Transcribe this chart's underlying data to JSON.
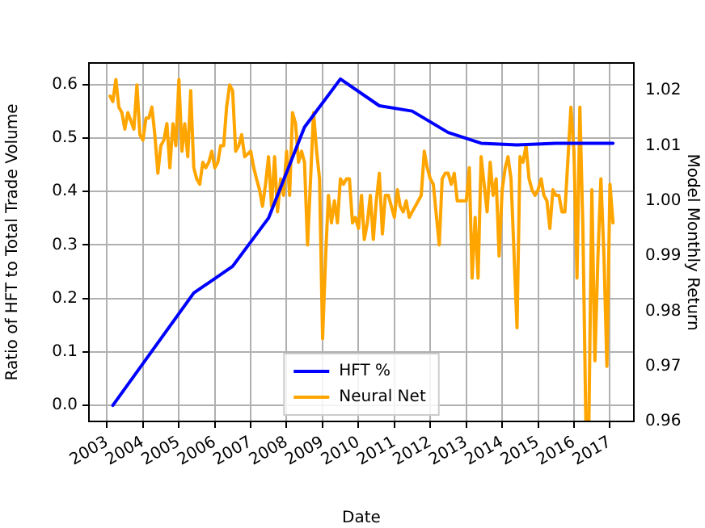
{
  "chart_data": {
    "type": "line",
    "xlabel": "Date",
    "ylabel": "Ratio of HFT to Total Trade Volume",
    "y2label": "Model Monthly Return",
    "xlim": [
      "2002-07",
      "2017-09"
    ],
    "xticks": [
      "2003",
      "2004",
      "2005",
      "2006",
      "2007",
      "2008",
      "2009",
      "2010",
      "2011",
      "2012",
      "2013",
      "2014",
      "2015",
      "2016",
      "2017"
    ],
    "ylim": [
      -0.03,
      0.64
    ],
    "yticks": [
      {
        "value": 0,
        "label": "0.0"
      },
      0.1,
      0.2,
      0.3,
      0.4,
      0.5,
      0.6
    ],
    "y2lim": [
      0.96,
      1.025
    ],
    "y2ticks": [
      0.96,
      0.97,
      0.98,
      0.99,
      {
        "value": 1,
        "label": "1.00"
      },
      1.01,
      1.02
    ],
    "grid": true,
    "legend": "bottom",
    "series": [
      {
        "name": "HFT %",
        "color": "#0000ff",
        "x": [
          "2003-03",
          "2005-06",
          "2006-07",
          "2007-07",
          "2008-07",
          "2009-07",
          "2010-08",
          "2011-07",
          "2012-07",
          "2013-06",
          "2014-06",
          "2015-07",
          "2017-02"
        ],
        "values": [
          0,
          0.21,
          0.26,
          0.35,
          0.52,
          0.61,
          0.56,
          0.55,
          0.51,
          0.49,
          0.487,
          0.49,
          0.49
        ]
      },
      {
        "name": "Neural Net",
        "color": "#ffa500",
        "axis": "y2",
        "x": [
          "2003-02",
          "2003-03",
          "2003-04",
          "2003-05",
          "2003-06",
          "2003-07",
          "2003-08",
          "2003-10",
          "2003-11",
          "2003-12",
          "2004-01",
          "2004-02",
          "2004-03",
          "2004-04",
          "2004-05",
          "2004-06",
          "2004-07",
          "2004-08",
          "2004-09",
          "2004-10",
          "2004-11",
          "2004-12",
          "2005-01",
          "2005-02",
          "2005-03",
          "2005-04",
          "2005-05",
          "2005-06",
          "2005-07",
          "2005-08",
          "2005-09",
          "2005-10",
          "2005-11",
          "2005-12",
          "2006-01",
          "2006-02",
          "2006-03",
          "2006-04",
          "2006-05",
          "2006-06",
          "2006-07",
          "2006-08",
          "2006-09",
          "2006-10",
          "2006-11",
          "2007-01",
          "2007-02",
          "2007-03",
          "2007-04",
          "2007-05",
          "2007-06",
          "2007-07",
          "2007-08",
          "2007-09",
          "2007-10",
          "2007-11",
          "2007-12",
          "2008-01",
          "2008-02",
          "2008-03",
          "2008-04",
          "2008-05",
          "2008-06",
          "2008-07",
          "2008-08",
          "2008-09",
          "2008-10",
          "2008-11",
          "2008-12",
          "2009-01",
          "2009-02",
          "2009-03",
          "2009-04",
          "2009-05",
          "2009-06",
          "2009-07",
          "2009-08",
          "2009-09",
          "2009-10",
          "2009-11",
          "2009-12",
          "2010-01",
          "2010-02",
          "2010-03",
          "2010-04",
          "2010-05",
          "2010-06",
          "2010-07",
          "2010-08",
          "2010-09",
          "2010-10",
          "2010-11",
          "2010-12",
          "2011-01",
          "2011-02",
          "2011-03",
          "2011-04",
          "2011-05",
          "2011-06",
          "2011-07",
          "2011-08",
          "2011-09",
          "2011-10",
          "2011-11",
          "2011-12",
          "2012-01",
          "2012-02",
          "2012-04",
          "2012-05",
          "2012-06",
          "2012-07",
          "2012-08",
          "2012-09",
          "2012-10",
          "2012-11",
          "2012-12",
          "2013-01",
          "2013-02",
          "2013-03",
          "2013-04",
          "2013-05",
          "2013-06",
          "2013-08",
          "2013-09",
          "2013-10",
          "2013-11",
          "2013-12",
          "2014-01",
          "2014-02",
          "2014-03",
          "2014-04",
          "2014-06",
          "2014-07",
          "2014-08",
          "2014-09",
          "2014-10",
          "2014-11",
          "2014-12",
          "2015-01",
          "2015-02",
          "2015-03",
          "2015-04",
          "2015-05",
          "2015-06",
          "2015-07",
          "2015-08",
          "2015-09",
          "2015-10",
          "2015-12",
          "2016-01",
          "2016-02",
          "2016-03",
          "2016-04",
          "2016-05",
          "2016-06",
          "2016-07",
          "2016-08",
          "2016-09",
          "2016-10",
          "2016-11",
          "2016-12",
          "2017-01",
          "2017-02"
        ],
        "values": [
          1.019,
          1.018,
          1.022,
          1.017,
          1.016,
          1.013,
          1.016,
          1.013,
          1.021,
          1.012,
          1.011,
          1.015,
          1.015,
          1.017,
          1.012,
          1.005,
          1.01,
          1.011,
          1.014,
          1.006,
          1.014,
          1.01,
          1.022,
          1.009,
          1.014,
          1.008,
          1.02,
          1.006,
          1.004,
          1.003,
          1.007,
          1.006,
          1.007,
          1.009,
          1.006,
          1.007,
          1.01,
          1.01,
          1.017,
          1.021,
          1.02,
          1.009,
          1.01,
          1.012,
          1.008,
          1.009,
          1.006,
          1.004,
          1.002,
          0.999,
          1.003,
          1.008,
          0.999,
          1.008,
          0.998,
          1.004,
          1.001,
          1.009,
          1.001,
          1.016,
          1.014,
          1.007,
          1.009,
          1.007,
          0.992,
          1.004,
          1.016,
          1.009,
          1.004,
          0.975,
          0.99,
          1.001,
          0.996,
          1.0,
          0.996,
          1.004,
          1.003,
          1.004,
          1.004,
          0.996,
          0.997,
          0.995,
          1.001,
          0.993,
          0.996,
          1.001,
          0.993,
          1.0,
          1.005,
          0.994,
          1.001,
          1.001,
          0.999,
          0.997,
          1.002,
          0.999,
          0.998,
          1.0,
          0.997,
          0.998,
          0.999,
          1.0,
          1.001,
          1.009,
          1.006,
          1.004,
          1.003,
          0.992,
          1.004,
          1.005,
          1.005,
          1.003,
          1.005,
          1.0,
          1.0,
          1.0,
          1.0,
          1.006,
          0.986,
          0.997,
          0.986,
          1.008,
          0.998,
          1.007,
          1.001,
          1.004,
          0.99,
          1.002,
          1.006,
          1.008,
          1.004,
          0.977,
          1.008,
          1.007,
          1.01,
          1.004,
          1.002,
          1.001,
          1.002,
          1.004,
          1.001,
          1.0,
          0.995,
          1.002,
          1.001,
          1.001,
          0.998,
          0.998,
          1.017,
          1.009,
          0.986,
          1.017,
          0.995,
          0.96,
          0.96,
          1.002,
          0.971,
          0.99,
          1.004,
          0.99,
          0.97,
          1.003,
          0.996
        ]
      }
    ]
  }
}
